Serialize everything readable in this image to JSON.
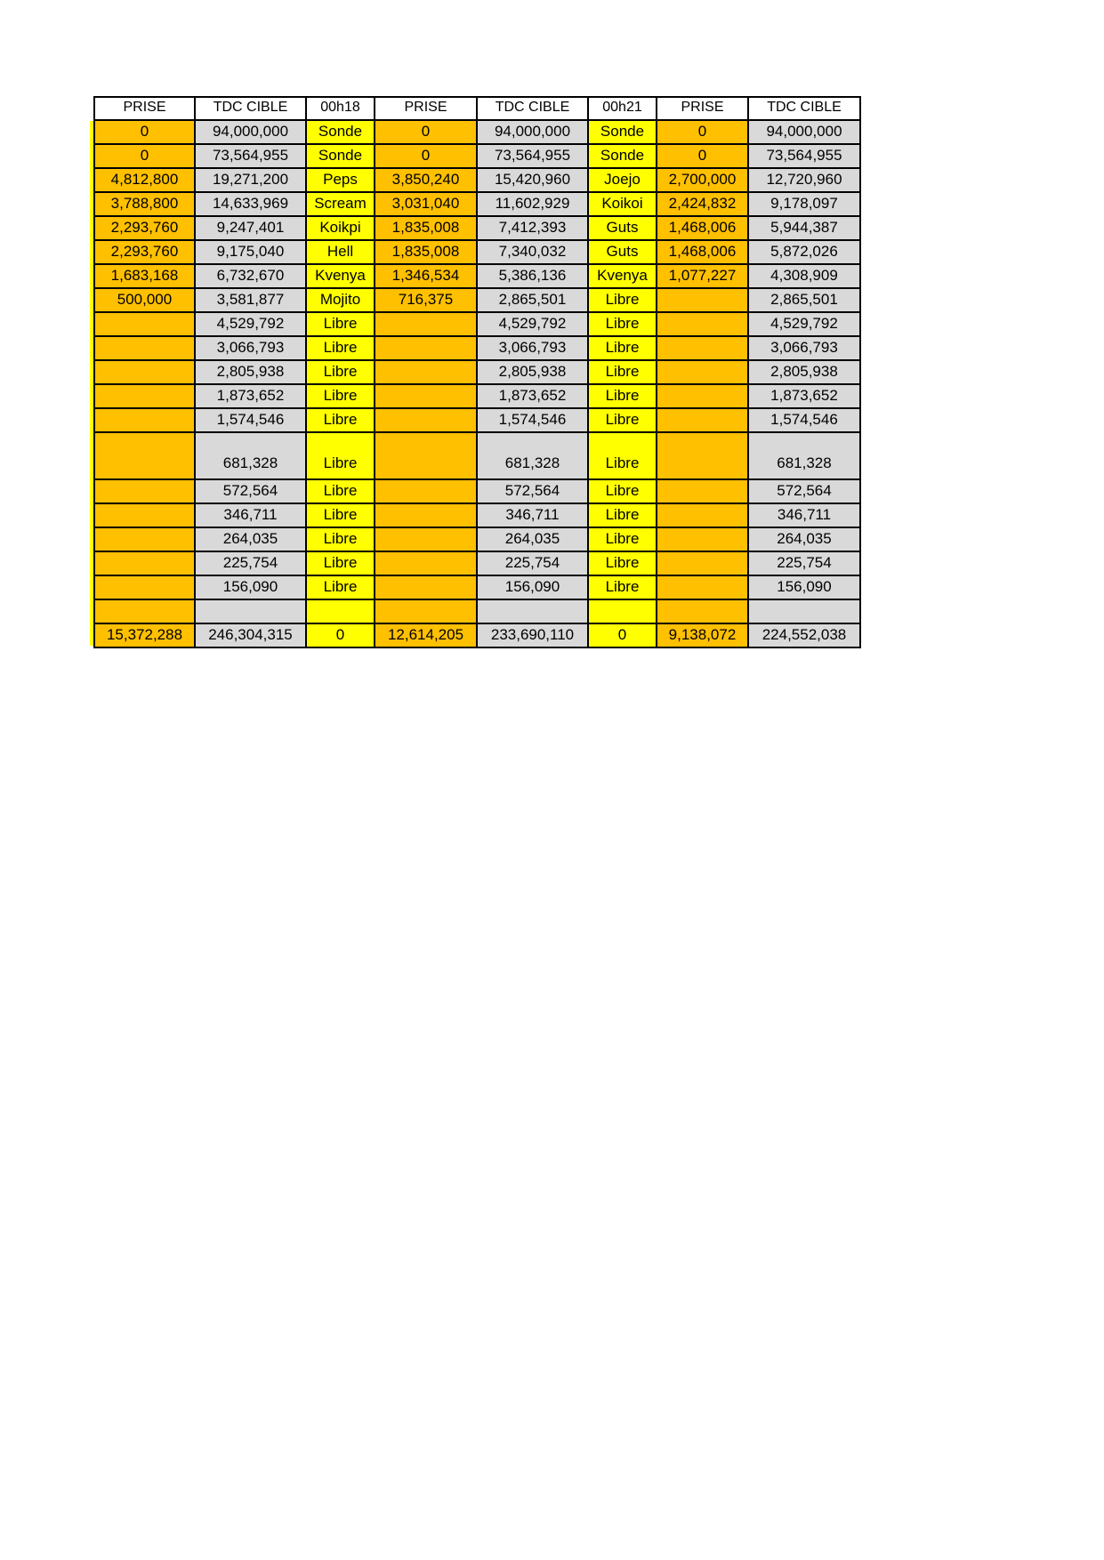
{
  "table": {
    "headers": [
      "PRISE",
      "TDC CIBLE",
      "00h18",
      "PRISE",
      "TDC CIBLE",
      "00h21",
      "PRISE",
      "TDC CIBLE"
    ],
    "colors": {
      "orange": "#FFC000",
      "yellow": "#FFFF00",
      "gray": "#D9D9D9",
      "header_bg": "#FFFFFF",
      "border": "#000000"
    },
    "column_color_pattern": [
      "orange",
      "gray",
      "yellow",
      "orange",
      "gray",
      "yellow",
      "orange",
      "gray"
    ],
    "tall_row_index": 13,
    "rows": [
      [
        "0",
        "94,000,000",
        "Sonde",
        "0",
        "94,000,000",
        "Sonde",
        "0",
        "94,000,000"
      ],
      [
        "0",
        "73,564,955",
        "Sonde",
        "0",
        "73,564,955",
        "Sonde",
        "0",
        "73,564,955"
      ],
      [
        "4,812,800",
        "19,271,200",
        "Peps",
        "3,850,240",
        "15,420,960",
        "Joejo",
        "2,700,000",
        "12,720,960"
      ],
      [
        "3,788,800",
        "14,633,969",
        "Scream",
        "3,031,040",
        "11,602,929",
        "Koikoi",
        "2,424,832",
        "9,178,097"
      ],
      [
        "2,293,760",
        "9,247,401",
        "Koikpi",
        "1,835,008",
        "7,412,393",
        "Guts",
        "1,468,006",
        "5,944,387"
      ],
      [
        "2,293,760",
        "9,175,040",
        "Hell",
        "1,835,008",
        "7,340,032",
        "Guts",
        "1,468,006",
        "5,872,026"
      ],
      [
        "1,683,168",
        "6,732,670",
        "Kvenya",
        "1,346,534",
        "5,386,136",
        "Kvenya",
        "1,077,227",
        "4,308,909"
      ],
      [
        "500,000",
        "3,581,877",
        "Mojito",
        "716,375",
        "2,865,501",
        "Libre",
        "",
        "2,865,501"
      ],
      [
        "",
        "4,529,792",
        "Libre",
        "",
        "4,529,792",
        "Libre",
        "",
        "4,529,792"
      ],
      [
        "",
        "3,066,793",
        "Libre",
        "",
        "3,066,793",
        "Libre",
        "",
        "3,066,793"
      ],
      [
        "",
        "2,805,938",
        "Libre",
        "",
        "2,805,938",
        "Libre",
        "",
        "2,805,938"
      ],
      [
        "",
        "1,873,652",
        "Libre",
        "",
        "1,873,652",
        "Libre",
        "",
        "1,873,652"
      ],
      [
        "",
        "1,574,546",
        "Libre",
        "",
        "1,574,546",
        "Libre",
        "",
        "1,574,546"
      ],
      [
        "",
        "681,328",
        "Libre",
        "",
        "681,328",
        "Libre",
        "",
        "681,328"
      ],
      [
        "",
        "572,564",
        "Libre",
        "",
        "572,564",
        "Libre",
        "",
        "572,564"
      ],
      [
        "",
        "346,711",
        "Libre",
        "",
        "346,711",
        "Libre",
        "",
        "346,711"
      ],
      [
        "",
        "264,035",
        "Libre",
        "",
        "264,035",
        "Libre",
        "",
        "264,035"
      ],
      [
        "",
        "225,754",
        "Libre",
        "",
        "225,754",
        "Libre",
        "",
        "225,754"
      ],
      [
        "",
        "156,090",
        "Libre",
        "",
        "156,090",
        "Libre",
        "",
        "156,090"
      ],
      [
        "",
        "",
        "",
        "",
        "",
        "",
        "",
        ""
      ]
    ],
    "totals": [
      "15,372,288",
      "246,304,315",
      "0",
      "12,614,205",
      "233,690,110",
      "0",
      "9,138,072",
      "224,552,038"
    ]
  }
}
